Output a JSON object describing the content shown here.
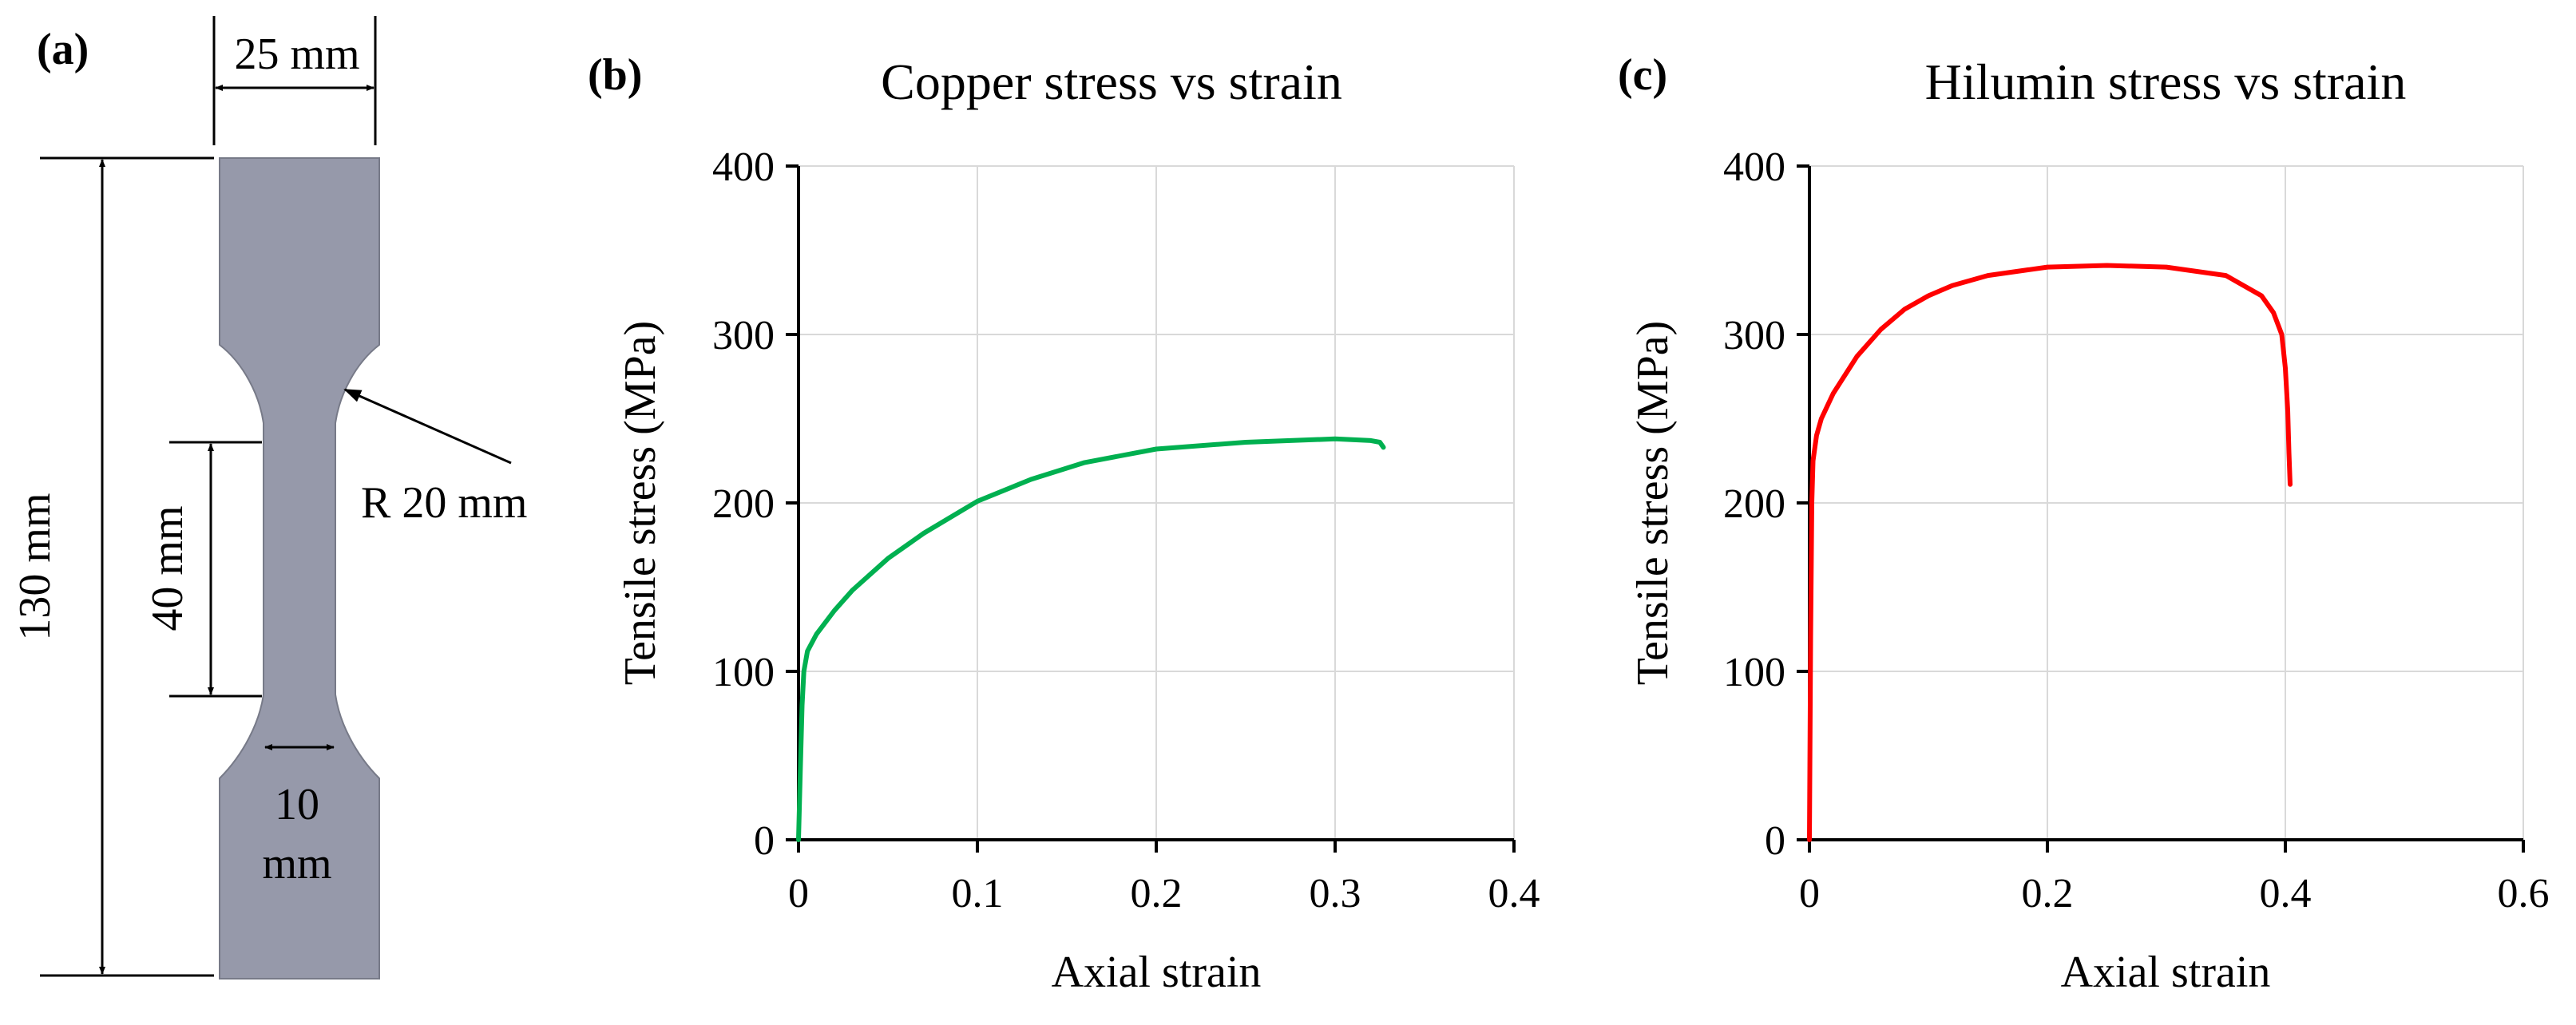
{
  "panel_a": {
    "label": "(a)",
    "dim_width": "25 mm",
    "dim_length": "130 mm",
    "dim_gauge": "40 mm",
    "dim_radius": "R 20 mm",
    "dim_neck_line1": "10",
    "dim_neck_line2": "mm",
    "specimen_color": "#9699aa"
  },
  "chart_data": [
    {
      "panel_label": "(b)",
      "type": "line",
      "title": "Copper stress vs strain",
      "xlabel": "Axial strain",
      "ylabel": "Tensile stress (MPa)",
      "xlim": [
        0,
        0.4
      ],
      "ylim": [
        0,
        400
      ],
      "xticks": [
        0,
        0.1,
        0.2,
        0.3,
        0.4
      ],
      "xtick_labels": [
        "0",
        "0.1",
        "0.2",
        "0.3",
        "0.4"
      ],
      "yticks": [
        0,
        100,
        200,
        300,
        400
      ],
      "ytick_labels": [
        "0",
        "100",
        "200",
        "300",
        "400"
      ],
      "grid": true,
      "series": [
        {
          "name": "Copper",
          "color": "#00b050",
          "x": [
            0,
            0.001,
            0.002,
            0.003,
            0.005,
            0.01,
            0.02,
            0.03,
            0.05,
            0.07,
            0.1,
            0.13,
            0.16,
            0.2,
            0.25,
            0.3,
            0.32,
            0.325,
            0.327
          ],
          "y": [
            0,
            40,
            80,
            100,
            112,
            122,
            136,
            148,
            167,
            182,
            201,
            214,
            224,
            232,
            236,
            238,
            237,
            236,
            233
          ]
        }
      ]
    },
    {
      "panel_label": "(c)",
      "type": "line",
      "title": "Hilumin stress vs strain",
      "xlabel": "Axial strain",
      "ylabel": "Tensile stress (MPa)",
      "xlim": [
        0,
        0.6
      ],
      "ylim": [
        0,
        400
      ],
      "xticks": [
        0,
        0.2,
        0.4,
        0.6
      ],
      "xtick_labels": [
        "0",
        "0.2",
        "0.4",
        "0.6"
      ],
      "yticks": [
        0,
        100,
        200,
        300,
        400
      ],
      "ytick_labels": [
        "0",
        "100",
        "200",
        "300",
        "400"
      ],
      "grid": true,
      "series": [
        {
          "name": "Hilumin",
          "color": "#ff0000",
          "x": [
            0,
            0.001,
            0.002,
            0.003,
            0.006,
            0.01,
            0.02,
            0.04,
            0.06,
            0.08,
            0.1,
            0.12,
            0.15,
            0.2,
            0.25,
            0.3,
            0.35,
            0.38,
            0.39,
            0.397,
            0.4,
            0.402,
            0.403,
            0.404
          ],
          "y": [
            0,
            120,
            200,
            225,
            240,
            250,
            265,
            287,
            303,
            315,
            323,
            329,
            335,
            340,
            341,
            340,
            335,
            323,
            313,
            300,
            280,
            255,
            230,
            211
          ]
        }
      ]
    }
  ]
}
